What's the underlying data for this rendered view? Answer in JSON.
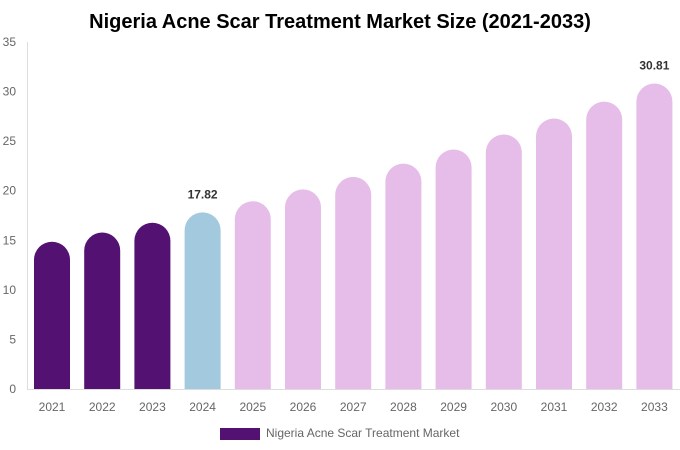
{
  "chart_data": {
    "type": "bar",
    "title": "Nigeria Acne Scar Treatment Market Size (2021-2033)",
    "categories": [
      "2021",
      "2022",
      "2023",
      "2024",
      "2025",
      "2026",
      "2027",
      "2028",
      "2029",
      "2030",
      "2031",
      "2032",
      "2033"
    ],
    "series": [
      {
        "name": "Nigeria Acne Scar Treatment Market",
        "values": [
          14.85,
          15.78,
          16.77,
          17.82,
          18.94,
          20.13,
          21.39,
          22.73,
          24.16,
          25.67,
          27.28,
          28.99,
          30.81
        ]
      }
    ],
    "data_labels": {
      "2024": "17.82",
      "2033": "30.81"
    },
    "bar_colors": [
      "#531271",
      "#531271",
      "#531271",
      "#a3c9de",
      "#e6bce8",
      "#e6bce8",
      "#e6bce8",
      "#e6bce8",
      "#e6bce8",
      "#e6bce8",
      "#e6bce8",
      "#e6bce8",
      "#e6bce8"
    ],
    "legend_color": "#531271",
    "yticks": [
      0,
      5,
      10,
      15,
      20,
      25,
      30,
      35
    ],
    "ylim": [
      0,
      35
    ],
    "xlabel": "",
    "ylabel": "",
    "grid": false,
    "legend_position": "bottom"
  }
}
